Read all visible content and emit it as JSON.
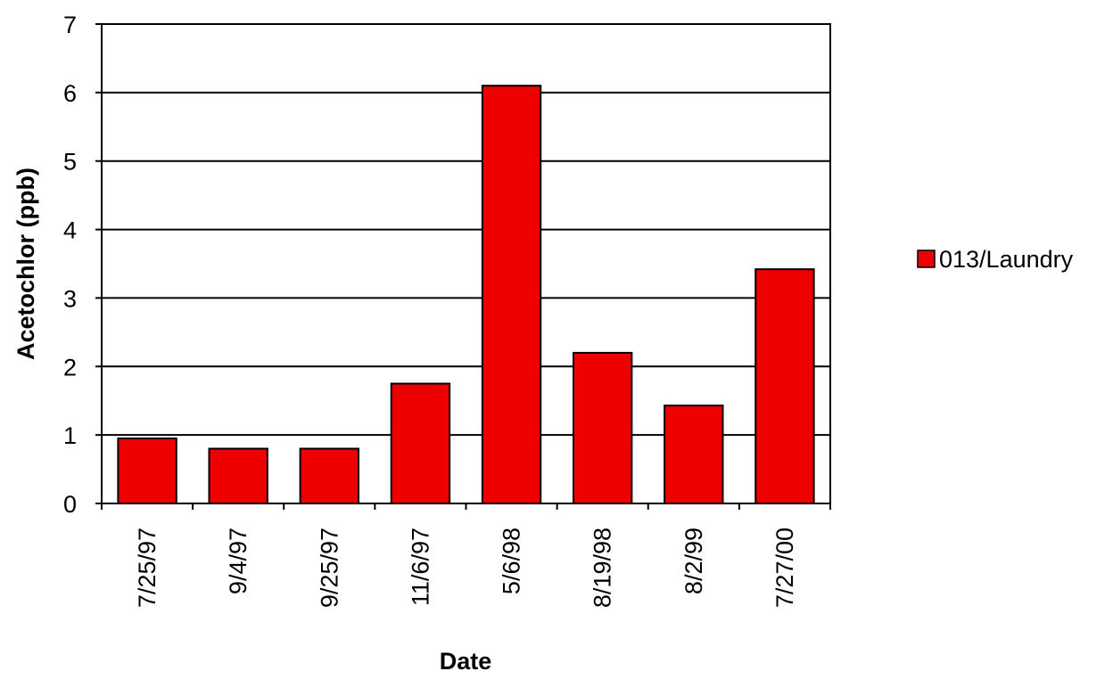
{
  "chart_data": {
    "type": "bar",
    "title": "",
    "xlabel": "Date",
    "ylabel": "Acetochlor (ppb)",
    "ylim": [
      0,
      7
    ],
    "yticks": [
      "0",
      "1",
      "2",
      "3",
      "4",
      "5",
      "6",
      "7"
    ],
    "grid": "horizontal",
    "legend_position": "right",
    "categories": [
      "7/25/97",
      "9/4/97",
      "9/25/97",
      "11/6/97",
      "5/6/98",
      "8/19/98",
      "8/2/99",
      "7/27/00"
    ],
    "series": [
      {
        "name": "013/Laundry",
        "color": "#ee0000",
        "values": [
          0.95,
          0.8,
          0.8,
          1.75,
          6.1,
          2.2,
          1.43,
          3.42
        ]
      }
    ]
  }
}
